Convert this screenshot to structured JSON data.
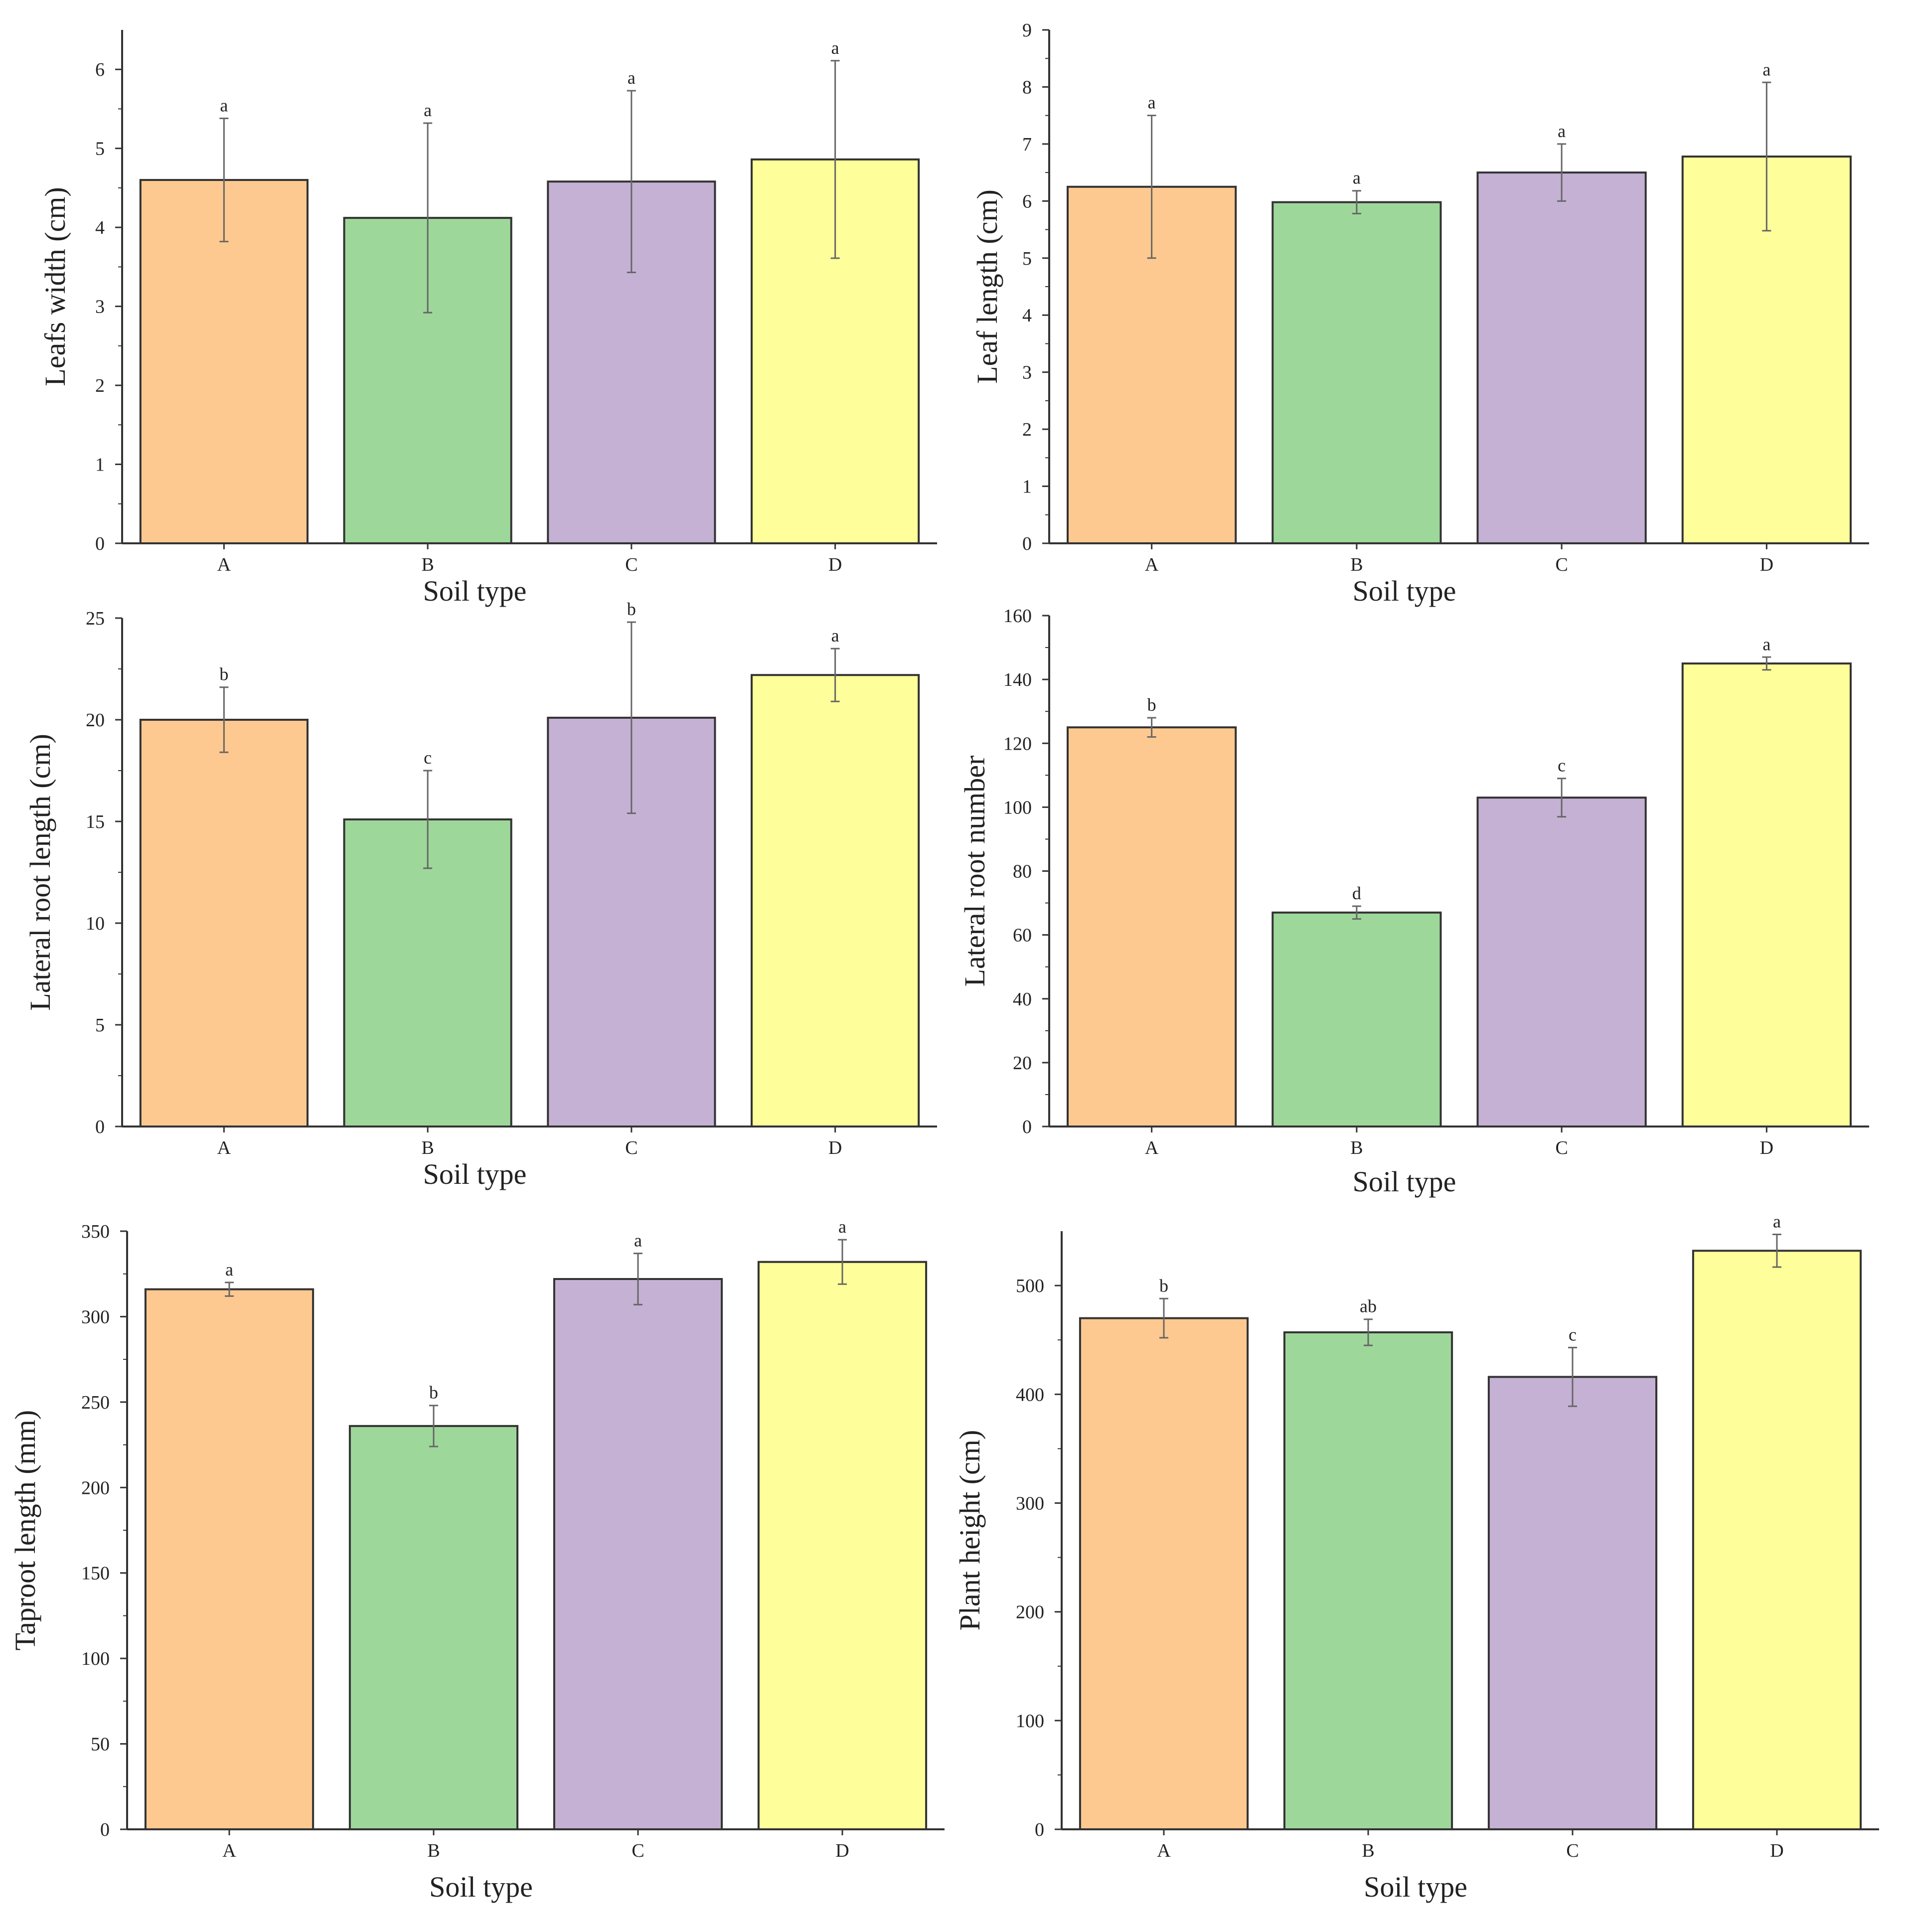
{
  "colors": {
    "bar_fills": [
      "#FEC990",
      "#9ED79A",
      "#C5B1D4",
      "#FEFE9A"
    ],
    "bar_stroke": "#333333",
    "axis": "#333333",
    "error_bar": "#666666"
  },
  "chart_data": [
    {
      "type": "bar",
      "xlabel": "Soil type",
      "ylabel": "Leafs width (cm)",
      "ylim": [
        0,
        6.5
      ],
      "yticks": [
        "0",
        "1",
        "2",
        "3",
        "4",
        "5",
        "6"
      ],
      "categories": [
        "A",
        "B",
        "C",
        "D"
      ],
      "values": [
        4.6,
        4.12,
        4.58,
        4.86
      ],
      "errors": [
        0.78,
        1.2,
        1.15,
        1.25
      ],
      "significance": [
        "a",
        "a",
        "a",
        "a"
      ]
    },
    {
      "type": "bar",
      "xlabel": "Soil type",
      "ylabel": "Leaf length (cm)",
      "ylim": [
        0,
        9
      ],
      "yticks": [
        "0",
        "1",
        "2",
        "3",
        "4",
        "5",
        "6",
        "7",
        "8",
        "9"
      ],
      "categories": [
        "A",
        "B",
        "C",
        "D"
      ],
      "values": [
        6.25,
        5.98,
        6.5,
        6.78
      ],
      "errors": [
        1.25,
        0.2,
        0.5,
        1.3
      ],
      "significance": [
        "a",
        "a",
        "a",
        "a"
      ]
    },
    {
      "type": "bar",
      "xlabel": "Soil type",
      "ylabel": "Lateral root length (cm)",
      "ylim": [
        0,
        25
      ],
      "yticks": [
        "0",
        "5",
        "10",
        "15",
        "20",
        "25"
      ],
      "categories": [
        "A",
        "B",
        "C",
        "D"
      ],
      "values": [
        20.0,
        15.1,
        20.1,
        22.2
      ],
      "errors": [
        1.6,
        2.4,
        4.7,
        1.3
      ],
      "significance": [
        "b",
        "c",
        "b",
        "a"
      ]
    },
    {
      "type": "bar",
      "xlabel": "Soil type",
      "ylabel": "Lateral root number",
      "ylim": [
        0,
        160
      ],
      "yticks": [
        "0",
        "20",
        "40",
        "60",
        "80",
        "100",
        "120",
        "140",
        "160"
      ],
      "categories": [
        "A",
        "B",
        "C",
        "D"
      ],
      "values": [
        125,
        67,
        103,
        145
      ],
      "errors": [
        3,
        2,
        6,
        2
      ],
      "significance": [
        "b",
        "d",
        "c",
        "a"
      ]
    },
    {
      "type": "bar",
      "xlabel": "Soil type",
      "ylabel": "Taproot length (mm)",
      "ylim": [
        0,
        350
      ],
      "yticks": [
        "0",
        "50",
        "100",
        "150",
        "200",
        "250",
        "300",
        "350"
      ],
      "categories": [
        "A",
        "B",
        "C",
        "D"
      ],
      "values": [
        316,
        236,
        322,
        332
      ],
      "errors": [
        4,
        12,
        15,
        13
      ],
      "significance": [
        "a",
        "b",
        "a",
        "a"
      ]
    },
    {
      "type": "bar",
      "xlabel": "Soil type",
      "ylabel": "Plant height (cm)",
      "ylim": [
        0,
        550
      ],
      "yticks": [
        "0",
        "100",
        "200",
        "300",
        "400",
        "500"
      ],
      "categories": [
        "A",
        "B",
        "C",
        "D"
      ],
      "values": [
        470,
        457,
        416,
        532
      ],
      "errors": [
        18,
        12,
        27,
        15
      ],
      "significance": [
        "b",
        "ab",
        "c",
        "a"
      ]
    }
  ]
}
